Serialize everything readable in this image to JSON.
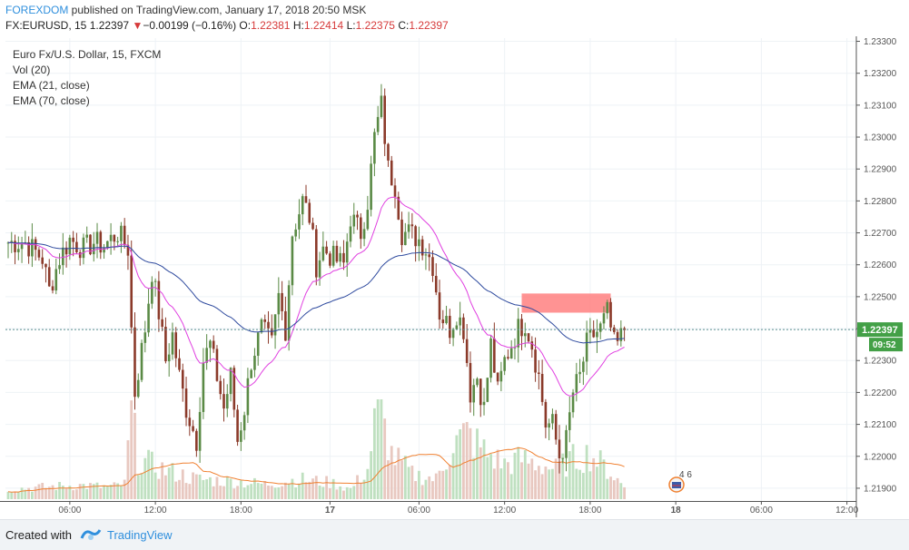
{
  "header": {
    "brand": "FOREXDOM",
    "published": " published on TradingView.com, January 17, 2018 20:50 MSK",
    "symbol": "FX:EURUSD, 15",
    "last": "1.22397",
    "change_arrow": "▼",
    "change": "−0.00199 (−0.16%)",
    "o_label": "O:",
    "o_val": "1.22381",
    "h_label": "H:",
    "h_val": "1.22414",
    "l_label": "L:",
    "l_val": "1.22375",
    "c_label": "C:",
    "c_val": "1.22397"
  },
  "footer": {
    "created_with": "Created with",
    "tradingview": "TradingView"
  },
  "colors": {
    "up": "#5a8a45",
    "down": "#8b3a2a",
    "ema21": "#e040e0",
    "ema70": "#2e4a9e",
    "vol_sma": "#f08030",
    "vol_up": "#bfe0c0",
    "vol_down": "#e8c8c0",
    "zone": "#ff8080",
    "price_label": "#43a047",
    "grid": "#eef2f6"
  },
  "chart_data": {
    "type": "candlestick",
    "symbol_title": "Euro Fx/U.S. Dollar, 15, FXCM",
    "indicators": [
      "Vol (20)",
      "EMA (21, close)",
      "EMA (70, close)"
    ],
    "y_ticks": [
      "1.23300",
      "1.23200",
      "1.23100",
      "1.23000",
      "1.22900",
      "1.22800",
      "1.22700",
      "1.22600",
      "1.22500",
      "1.22400",
      "1.22300",
      "1.22200",
      "1.22100",
      "1.22000",
      "1.21900"
    ],
    "ylim": [
      1.2186,
      1.2331
    ],
    "x_ticks": [
      "06:00",
      "12:00",
      "18:00",
      "17",
      "06:00",
      "12:00",
      "18:00",
      "18",
      "06:00",
      "12:00"
    ],
    "last_price_label": "1.22397",
    "countdown_label": "09:52",
    "event_badge": "4 6",
    "resistance_zone": {
      "start_index": 150,
      "end_index": 176,
      "low": 1.2245,
      "high": 1.2251
    },
    "anchors": [
      [
        0,
        1.2267
      ],
      [
        5,
        1.2267
      ],
      [
        10,
        1.2262
      ],
      [
        12,
        1.2252
      ],
      [
        15,
        1.2262
      ],
      [
        18,
        1.2268
      ],
      [
        22,
        1.2265
      ],
      [
        25,
        1.2267
      ],
      [
        28,
        1.2266
      ],
      [
        32,
        1.227
      ],
      [
        35,
        1.2265
      ],
      [
        36,
        1.224
      ],
      [
        37,
        1.222
      ],
      [
        40,
        1.224
      ],
      [
        42,
        1.2258
      ],
      [
        44,
        1.2245
      ],
      [
        46,
        1.223
      ],
      [
        48,
        1.2238
      ],
      [
        50,
        1.2225
      ],
      [
        52,
        1.2215
      ],
      [
        55,
        1.2205
      ],
      [
        57,
        1.223
      ],
      [
        59,
        1.2235
      ],
      [
        61,
        1.2225
      ],
      [
        63,
        1.2215
      ],
      [
        65,
        1.2225
      ],
      [
        67,
        1.2205
      ],
      [
        69,
        1.2215
      ],
      [
        71,
        1.223
      ],
      [
        74,
        1.224
      ],
      [
        77,
        1.2235
      ],
      [
        79,
        1.225
      ],
      [
        81,
        1.224
      ],
      [
        83,
        1.227
      ],
      [
        86,
        1.228
      ],
      [
        88,
        1.2275
      ],
      [
        90,
        1.226
      ],
      [
        92,
        1.2265
      ],
      [
        95,
        1.2262
      ],
      [
        98,
        1.226
      ],
      [
        100,
        1.2275
      ],
      [
        103,
        1.227
      ],
      [
        105,
        1.228
      ],
      [
        107,
        1.23
      ],
      [
        109,
        1.231
      ],
      [
        111,
        1.229
      ],
      [
        113,
        1.2285
      ],
      [
        115,
        1.227
      ],
      [
        117,
        1.227
      ],
      [
        120,
        1.2268
      ],
      [
        122,
        1.2265
      ],
      [
        124,
        1.226
      ],
      [
        126,
        1.2245
      ],
      [
        129,
        1.224
      ],
      [
        131,
        1.2245
      ],
      [
        133,
        1.224
      ],
      [
        135,
        1.222
      ],
      [
        137,
        1.2225
      ],
      [
        139,
        1.2215
      ],
      [
        141,
        1.2235
      ],
      [
        143,
        1.222
      ],
      [
        145,
        1.223
      ],
      [
        147,
        1.2235
      ],
      [
        149,
        1.224
      ],
      [
        151,
        1.2242
      ],
      [
        153,
        1.2235
      ],
      [
        155,
        1.2225
      ],
      [
        157,
        1.221
      ],
      [
        159,
        1.221
      ],
      [
        161,
        1.22
      ],
      [
        163,
        1.2205
      ],
      [
        165,
        1.222
      ],
      [
        167,
        1.2225
      ],
      [
        169,
        1.2235
      ],
      [
        171,
        1.2238
      ],
      [
        173,
        1.224
      ],
      [
        175,
        1.2245
      ],
      [
        177,
        1.2235
      ],
      [
        178,
        1.2235
      ],
      [
        180,
        1.224
      ]
    ],
    "volume_anchors": [
      [
        0,
        0.1
      ],
      [
        10,
        0.12
      ],
      [
        20,
        0.14
      ],
      [
        30,
        0.12
      ],
      [
        34,
        0.15
      ],
      [
        36,
        0.85
      ],
      [
        38,
        0.4
      ],
      [
        45,
        0.3
      ],
      [
        55,
        0.2
      ],
      [
        65,
        0.18
      ],
      [
        75,
        0.15
      ],
      [
        85,
        0.2
      ],
      [
        95,
        0.16
      ],
      [
        100,
        0.1
      ],
      [
        105,
        0.3
      ],
      [
        108,
        0.95
      ],
      [
        112,
        0.45
      ],
      [
        118,
        0.25
      ],
      [
        125,
        0.2
      ],
      [
        130,
        0.55
      ],
      [
        134,
        0.65
      ],
      [
        140,
        0.45
      ],
      [
        145,
        0.35
      ],
      [
        150,
        0.4
      ],
      [
        155,
        0.35
      ],
      [
        160,
        0.3
      ],
      [
        165,
        0.4
      ],
      [
        170,
        0.45
      ],
      [
        175,
        0.3
      ],
      [
        180,
        0.12
      ]
    ]
  }
}
